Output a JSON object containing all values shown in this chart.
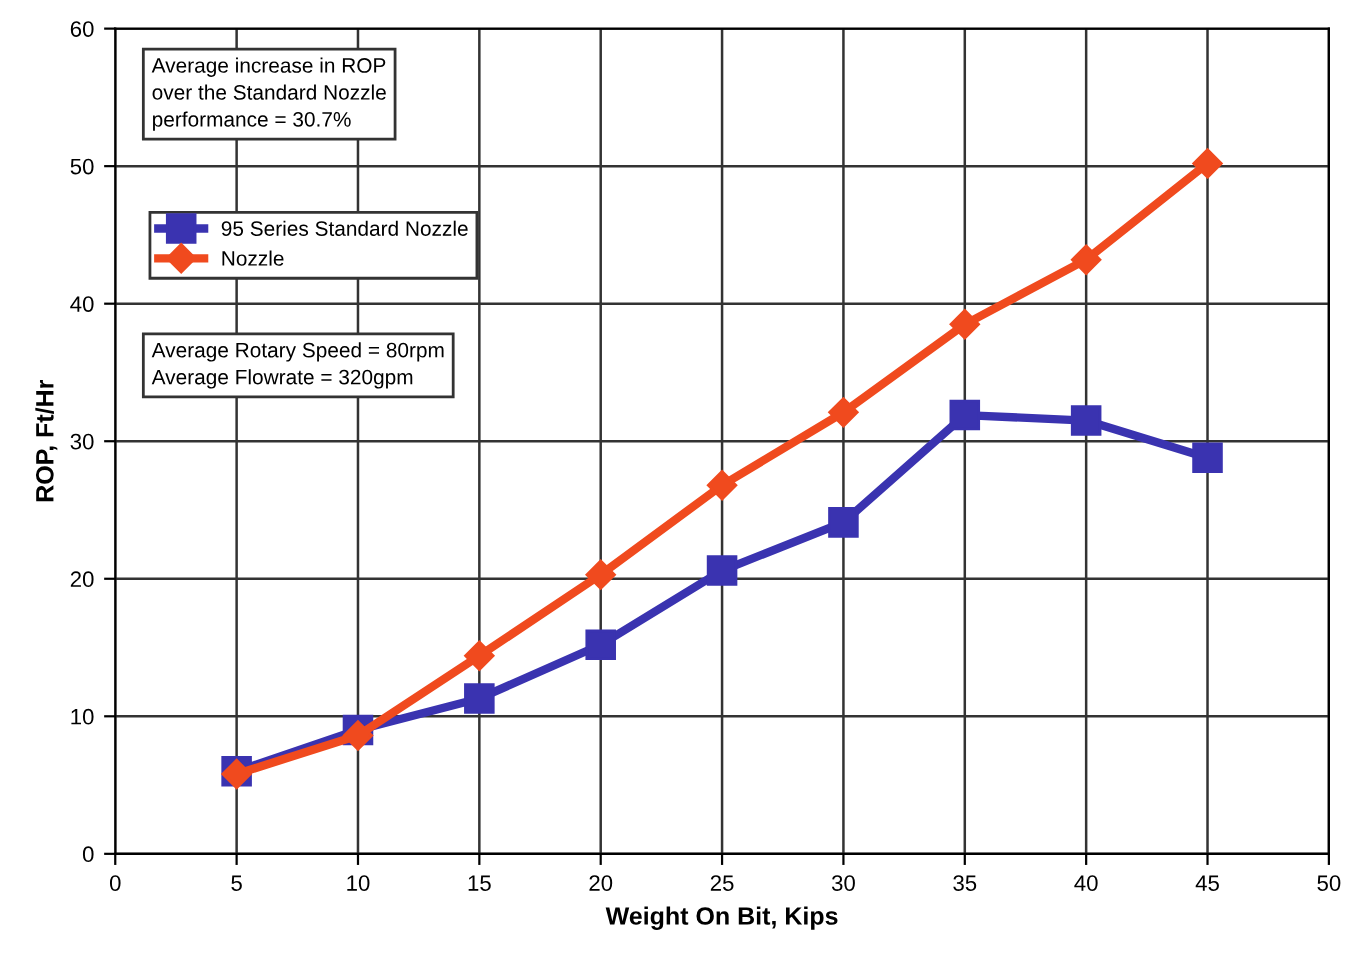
{
  "chart_data": {
    "type": "line",
    "xlabel": "Weight On Bit, Kips",
    "ylabel": "ROP, Ft/Hr",
    "x": [
      5,
      10,
      15,
      20,
      25,
      30,
      35,
      40,
      45
    ],
    "series": [
      {
        "name": "95 Series Standard Nozzle",
        "color": "#3a33b0",
        "marker": "square",
        "values": [
          6.0,
          9.0,
          11.3,
          15.2,
          20.6,
          24.1,
          31.9,
          31.5,
          28.8
        ]
      },
      {
        "name": "Nozzle",
        "color": "#f04a1e",
        "marker": "diamond",
        "values": [
          5.8,
          8.6,
          14.4,
          20.3,
          26.8,
          32.1,
          38.5,
          43.2,
          50.2
        ]
      }
    ],
    "annotations": [
      "Average increase in ROP\nover the Standard Nozzle\nperformance = 30.7%",
      "Average Rotary Speed = 80rpm\nAverage Flowrate = 320gpm"
    ],
    "xlim": [
      0,
      50
    ],
    "ylim": [
      0,
      60
    ],
    "xticks": [
      0,
      5,
      10,
      15,
      20,
      25,
      30,
      35,
      40,
      45,
      50
    ],
    "yticks": [
      0,
      10,
      20,
      30,
      40,
      50,
      60
    ],
    "grid": true,
    "legend": "top left",
    "line_style": "solid"
  }
}
